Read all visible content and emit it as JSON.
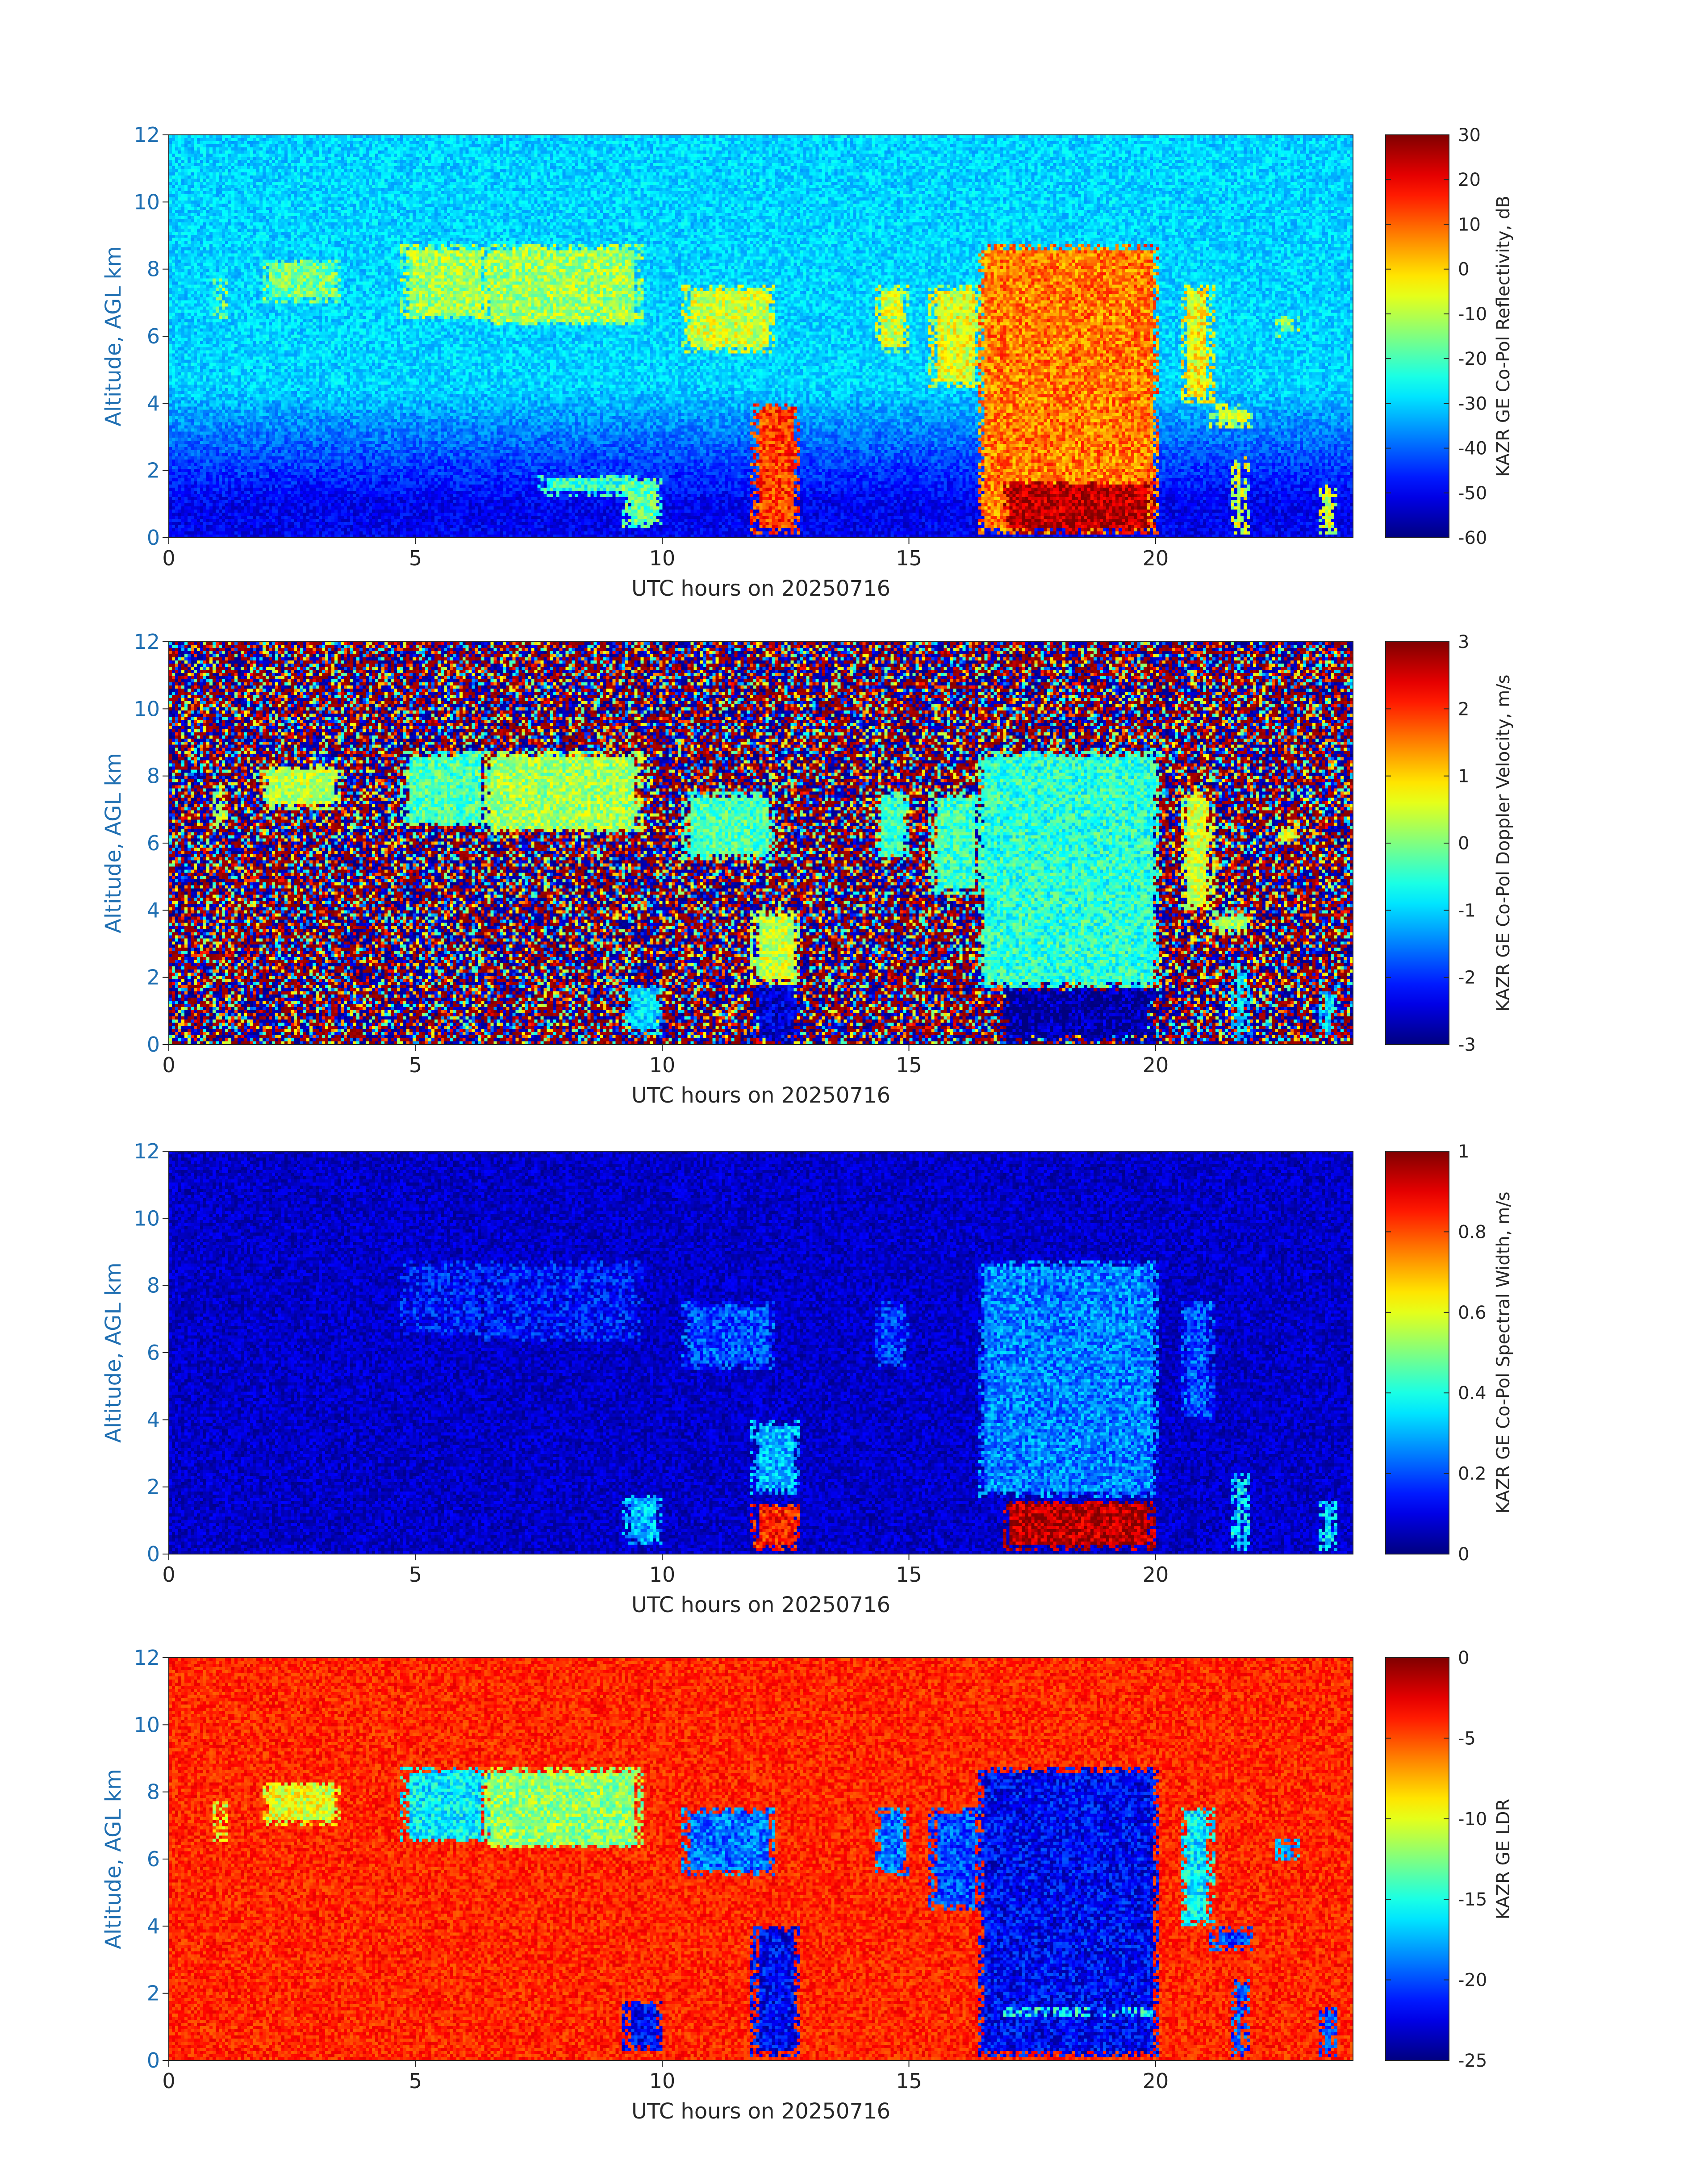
{
  "chart_data": [
    {
      "type": "heatmap",
      "field": "reflectivity",
      "xlabel": "UTC hours on 20250716",
      "ylabel": "Altitude, AGL km",
      "xlim": [
        0,
        24
      ],
      "ylim": [
        0,
        12
      ],
      "xticks": [
        0,
        5,
        10,
        15,
        20
      ],
      "yticks": [
        0,
        2,
        4,
        6,
        8,
        10,
        12
      ],
      "colorbar": {
        "label": "KAZR GE Co-Pol Reflectivity, dB",
        "colormap": "jet",
        "range": [
          -60,
          30
        ],
        "ticks": [
          "30",
          "20",
          "10",
          "0",
          "-10",
          "-20",
          "-30",
          "-40",
          "-50",
          "-60"
        ]
      },
      "background_value": -30,
      "near_surface_value": -50,
      "cloud_regions": [
        {
          "t0": 0.9,
          "t1": 1.2,
          "z0": 6.5,
          "z1": 7.7,
          "value": -14
        },
        {
          "t0": 1.9,
          "t1": 3.5,
          "z0": 7.0,
          "z1": 8.3,
          "value": -16
        },
        {
          "t0": 4.7,
          "t1": 6.5,
          "z0": 6.5,
          "z1": 8.7,
          "value": -12
        },
        {
          "t0": 6.4,
          "t1": 9.6,
          "z0": 6.3,
          "z1": 8.7,
          "value": -12
        },
        {
          "t0": 10.4,
          "t1": 12.3,
          "z0": 5.5,
          "z1": 7.5,
          "value": -8
        },
        {
          "t0": 11.8,
          "t1": 12.8,
          "z0": 0.1,
          "z1": 4.0,
          "value": 14
        },
        {
          "t0": 14.3,
          "t1": 15.0,
          "z0": 5.5,
          "z1": 7.5,
          "value": -8
        },
        {
          "t0": 15.4,
          "t1": 16.5,
          "z0": 4.5,
          "z1": 7.5,
          "value": -6
        },
        {
          "t0": 16.4,
          "t1": 20.1,
          "z0": 0.1,
          "z1": 8.7,
          "value": 8
        },
        {
          "t0": 16.9,
          "t1": 20.0,
          "z0": 0.1,
          "z1": 1.7,
          "value": 25
        },
        {
          "t0": 20.5,
          "t1": 21.2,
          "z0": 4.0,
          "z1": 7.5,
          "value": -4
        },
        {
          "t0": 21.1,
          "t1": 22.0,
          "z0": 3.3,
          "z1": 4.0,
          "value": -10
        },
        {
          "t0": 22.4,
          "t1": 22.9,
          "z0": 6.0,
          "z1": 6.6,
          "value": -14
        },
        {
          "t0": 7.5,
          "t1": 9.5,
          "z0": 1.2,
          "z1": 1.9,
          "value": -22
        },
        {
          "t0": 9.2,
          "t1": 10.0,
          "z0": 0.3,
          "z1": 1.8,
          "value": -18
        },
        {
          "t0": 21.5,
          "t1": 21.9,
          "z0": 0.1,
          "z1": 2.4,
          "value": -8
        },
        {
          "t0": 23.3,
          "t1": 23.7,
          "z0": 0.1,
          "z1": 1.6,
          "value": -8
        }
      ]
    },
    {
      "type": "heatmap",
      "field": "doppler_velocity",
      "xlabel": "UTC hours on 20250716",
      "ylabel": "Altitude, AGL km",
      "xlim": [
        0,
        24
      ],
      "ylim": [
        0,
        12
      ],
      "xticks": [
        0,
        5,
        10,
        15,
        20
      ],
      "yticks": [
        0,
        2,
        4,
        6,
        8,
        10,
        12
      ],
      "colorbar": {
        "label": "KAZR GE Co-Pol Doppler Velocity, m/s",
        "colormap": "jet",
        "range": [
          -3,
          3
        ],
        "ticks": [
          "3",
          "2",
          "1",
          "0",
          "-1",
          "-2",
          "-3"
        ]
      },
      "background_value": "noise",
      "near_surface_value": "noise",
      "cloud_regions": [
        {
          "t0": 0.9,
          "t1": 1.2,
          "z0": 6.5,
          "z1": 7.7,
          "value": 0.3
        },
        {
          "t0": 1.9,
          "t1": 3.5,
          "z0": 7.0,
          "z1": 8.3,
          "value": 0.3
        },
        {
          "t0": 4.7,
          "t1": 6.5,
          "z0": 6.5,
          "z1": 8.7,
          "value": -0.3
        },
        {
          "t0": 6.4,
          "t1": 9.6,
          "z0": 6.3,
          "z1": 8.7,
          "value": 0.2
        },
        {
          "t0": 10.4,
          "t1": 12.3,
          "z0": 5.5,
          "z1": 7.5,
          "value": -0.3
        },
        {
          "t0": 11.8,
          "t1": 12.8,
          "z0": 1.8,
          "z1": 4.0,
          "value": 0.4
        },
        {
          "t0": 11.8,
          "t1": 12.8,
          "z0": 0.1,
          "z1": 1.8,
          "value": -2.5
        },
        {
          "t0": 14.3,
          "t1": 15.0,
          "z0": 5.5,
          "z1": 7.5,
          "value": -0.4
        },
        {
          "t0": 15.4,
          "t1": 16.5,
          "z0": 4.5,
          "z1": 7.5,
          "value": -0.4
        },
        {
          "t0": 16.4,
          "t1": 20.1,
          "z0": 1.7,
          "z1": 8.7,
          "value": -0.5
        },
        {
          "t0": 16.9,
          "t1": 20.0,
          "z0": 0.1,
          "z1": 1.7,
          "value": -2.8
        },
        {
          "t0": 20.5,
          "t1": 21.2,
          "z0": 4.0,
          "z1": 7.5,
          "value": 0.5
        },
        {
          "t0": 21.1,
          "t1": 22.0,
          "z0": 3.3,
          "z1": 4.0,
          "value": 0.2
        },
        {
          "t0": 22.4,
          "t1": 22.9,
          "z0": 6.0,
          "z1": 6.6,
          "value": 0.6
        },
        {
          "t0": 9.2,
          "t1": 10.0,
          "z0": 0.3,
          "z1": 1.8,
          "value": -1.0
        },
        {
          "t0": 21.5,
          "t1": 21.9,
          "z0": 0.1,
          "z1": 2.4,
          "value": -1.0
        },
        {
          "t0": 23.3,
          "t1": 23.7,
          "z0": 0.1,
          "z1": 1.6,
          "value": -1.0
        }
      ]
    },
    {
      "type": "heatmap",
      "field": "spectral_width",
      "xlabel": "UTC hours on 20250716",
      "ylabel": "Altitude, AGL km",
      "xlim": [
        0,
        24
      ],
      "ylim": [
        0,
        12
      ],
      "xticks": [
        0,
        5,
        10,
        15,
        20
      ],
      "yticks": [
        0,
        2,
        4,
        6,
        8,
        10,
        12
      ],
      "colorbar": {
        "label": "KAZR GE Co-Pol Spectral Width, m/s",
        "colormap": "jet",
        "range": [
          0,
          1
        ],
        "ticks": [
          "1",
          "0.8",
          "0.6",
          "0.4",
          "0.2",
          "0"
        ]
      },
      "background_value": 0.07,
      "near_surface_value": 0.07,
      "cloud_regions": [
        {
          "t0": 4.7,
          "t1": 6.5,
          "z0": 6.5,
          "z1": 8.7,
          "value": 0.14
        },
        {
          "t0": 6.4,
          "t1": 9.6,
          "z0": 6.3,
          "z1": 8.7,
          "value": 0.14
        },
        {
          "t0": 10.4,
          "t1": 12.3,
          "z0": 5.5,
          "z1": 7.5,
          "value": 0.2
        },
        {
          "t0": 11.8,
          "t1": 12.8,
          "z0": 1.8,
          "z1": 4.0,
          "value": 0.3
        },
        {
          "t0": 11.8,
          "t1": 12.8,
          "z0": 0.1,
          "z1": 1.5,
          "value": 0.85
        },
        {
          "t0": 14.3,
          "t1": 15.0,
          "z0": 5.5,
          "z1": 7.5,
          "value": 0.18
        },
        {
          "t0": 16.4,
          "t1": 20.1,
          "z0": 1.7,
          "z1": 8.7,
          "value": 0.25
        },
        {
          "t0": 16.9,
          "t1": 20.0,
          "z0": 0.1,
          "z1": 1.6,
          "value": 0.95
        },
        {
          "t0": 20.5,
          "t1": 21.2,
          "z0": 4.0,
          "z1": 7.5,
          "value": 0.2
        },
        {
          "t0": 9.2,
          "t1": 10.0,
          "z0": 0.3,
          "z1": 1.8,
          "value": 0.3
        },
        {
          "t0": 21.5,
          "t1": 21.9,
          "z0": 0.1,
          "z1": 2.4,
          "value": 0.35
        },
        {
          "t0": 23.3,
          "t1": 23.7,
          "z0": 0.1,
          "z1": 1.6,
          "value": 0.35
        }
      ]
    },
    {
      "type": "heatmap",
      "field": "ldr",
      "xlabel": "UTC hours on 20250716",
      "ylabel": "Altitude, AGL km",
      "xlim": [
        0,
        24
      ],
      "ylim": [
        0,
        12
      ],
      "xticks": [
        0,
        5,
        10,
        15,
        20
      ],
      "yticks": [
        0,
        2,
        4,
        6,
        8,
        10,
        12
      ],
      "colorbar": {
        "label": "KAZR GE LDR",
        "colormap": "jet",
        "range": [
          -25,
          0
        ],
        "ticks": [
          "0",
          "-5",
          "-10",
          "-15",
          "-20",
          "-25"
        ]
      },
      "background_value": -4,
      "near_surface_value": -4,
      "cloud_regions": [
        {
          "t0": 0.9,
          "t1": 1.2,
          "z0": 6.5,
          "z1": 7.7,
          "value": -10
        },
        {
          "t0": 1.9,
          "t1": 3.5,
          "z0": 7.0,
          "z1": 8.3,
          "value": -10
        },
        {
          "t0": 4.7,
          "t1": 6.5,
          "z0": 6.5,
          "z1": 8.7,
          "value": -16
        },
        {
          "t0": 6.4,
          "t1": 9.6,
          "z0": 6.3,
          "z1": 8.7,
          "value": -12
        },
        {
          "t0": 10.4,
          "t1": 12.3,
          "z0": 5.5,
          "z1": 7.5,
          "value": -19
        },
        {
          "t0": 11.8,
          "t1": 12.8,
          "z0": 0.1,
          "z1": 4.0,
          "value": -22
        },
        {
          "t0": 14.3,
          "t1": 15.0,
          "z0": 5.5,
          "z1": 7.5,
          "value": -19
        },
        {
          "t0": 15.4,
          "t1": 16.5,
          "z0": 4.5,
          "z1": 7.5,
          "value": -20
        },
        {
          "t0": 16.4,
          "t1": 20.1,
          "z0": 0.1,
          "z1": 8.7,
          "value": -22
        },
        {
          "t0": 16.9,
          "t1": 20.0,
          "z0": 1.3,
          "z1": 1.6,
          "value": -15
        },
        {
          "t0": 20.5,
          "t1": 21.2,
          "z0": 4.0,
          "z1": 7.5,
          "value": -16
        },
        {
          "t0": 21.1,
          "t1": 22.0,
          "z0": 3.3,
          "z1": 4.0,
          "value": -20
        },
        {
          "t0": 22.4,
          "t1": 22.9,
          "z0": 6.0,
          "z1": 6.6,
          "value": -18
        },
        {
          "t0": 9.2,
          "t1": 10.0,
          "z0": 0.3,
          "z1": 1.8,
          "value": -22
        },
        {
          "t0": 21.5,
          "t1": 21.9,
          "z0": 0.1,
          "z1": 2.4,
          "value": -20
        },
        {
          "t0": 23.3,
          "t1": 23.7,
          "z0": 0.1,
          "z1": 1.6,
          "value": -20
        }
      ]
    }
  ]
}
